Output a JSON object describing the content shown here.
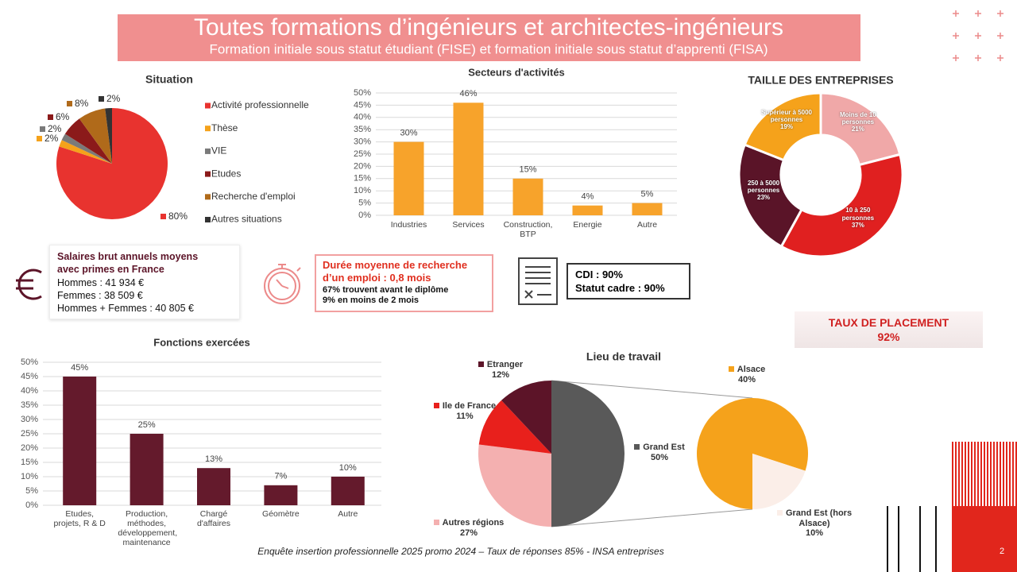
{
  "header": {
    "title": "Toutes formations d’ingénieurs et architectes-ingénieurs",
    "subtitle": "Formation initiale sous statut étudiant (FISE) et formation initiale sous statut d’apprenti (FISA)"
  },
  "chart_data": [
    {
      "type": "pie",
      "title": "Situation",
      "categories": [
        "Activité professionnelle",
        "Thèse",
        "VIE",
        "Etudes",
        "Recherche d'emploi",
        "Autres situations"
      ],
      "values": [
        80,
        2,
        2,
        6,
        8,
        2
      ],
      "value_labels": [
        "80%",
        "2%",
        "2%",
        "6%",
        "8%",
        "2%"
      ],
      "colors": [
        "#e8332f",
        "#f5a21b",
        "#7a7a7a",
        "#8b1a1a",
        "#b06a1a",
        "#333333"
      ],
      "legend": "right"
    },
    {
      "type": "bar",
      "title": "Secteurs d'activités",
      "categories": [
        "Industries",
        "Services",
        "Construction, BTP",
        "Energie",
        "Autre"
      ],
      "values": [
        30,
        46,
        15,
        4,
        5
      ],
      "value_labels": [
        "30%",
        "46%",
        "15%",
        "4%",
        "5%"
      ],
      "color": "#f7a32b",
      "ylim": [
        0,
        50
      ],
      "yticks": [
        {
          "value": 0,
          "label": "0%"
        },
        {
          "value": 5,
          "label": "5%"
        },
        {
          "value": 10,
          "label": "10%"
        },
        {
          "value": 15,
          "label": "15%"
        },
        {
          "value": 20,
          "label": "20%"
        },
        {
          "value": 25,
          "label": "25%"
        },
        {
          "value": 30,
          "label": "30%"
        },
        {
          "value": 35,
          "label": "35%"
        },
        {
          "value": 40,
          "label": "40%"
        },
        {
          "value": 45,
          "label": "45%"
        },
        {
          "value": 50,
          "label": "50%"
        }
      ],
      "grid": true
    },
    {
      "type": "donut",
      "title": "TAILLE DES ENTREPRISES",
      "categories": [
        "Moins de 10 personnes",
        "10 à 250 personnes",
        "250 à 5000 personnes",
        "Supérieur à 5000 personnes"
      ],
      "values": [
        21,
        37,
        23,
        19
      ],
      "value_labels": [
        "21%",
        "37%",
        "23%",
        "19%"
      ],
      "colors": [
        "#f0a8a8",
        "#e02020",
        "#5a1428",
        "#f5a21b"
      ]
    },
    {
      "type": "bar",
      "title": "Fonctions exercées",
      "categories": [
        "Etudes, projets, R & D",
        "Production, méthodes, développement, maintenance",
        "Chargé d'affaires",
        "Géomètre",
        "Autre"
      ],
      "values": [
        45,
        25,
        13,
        7,
        10
      ],
      "value_labels": [
        "45%",
        "25%",
        "13%",
        "7%",
        "10%"
      ],
      "color": "#641a2c",
      "ylim": [
        0,
        50
      ],
      "yticks": [
        {
          "value": 0,
          "label": "0%"
        },
        {
          "value": 5,
          "label": "5%"
        },
        {
          "value": 10,
          "label": "10%"
        },
        {
          "value": 15,
          "label": "15%"
        },
        {
          "value": 20,
          "label": "20%"
        },
        {
          "value": 25,
          "label": "25%"
        },
        {
          "value": 30,
          "label": "30%"
        },
        {
          "value": 35,
          "label": "35%"
        },
        {
          "value": 40,
          "label": "40%"
        },
        {
          "value": 45,
          "label": "45%"
        },
        {
          "value": 50,
          "label": "50%"
        }
      ],
      "grid": true
    },
    {
      "type": "pie_of_pie",
      "title": "Lieu de travail",
      "categories": [
        "Grand Est",
        "Autres régions",
        "Ile de France",
        "Etranger"
      ],
      "values": [
        50,
        27,
        11,
        12
      ],
      "value_labels": [
        "50%",
        "27%",
        "11%",
        "12%"
      ],
      "colors": [
        "#595959",
        "#f4b0b0",
        "#e8201c",
        "#5c1428"
      ],
      "detail": {
        "categories": [
          "Alsace",
          "Grand Est (hors Alsace)"
        ],
        "values": [
          40,
          10
        ],
        "value_labels": [
          "40%",
          "10%"
        ],
        "colors": [
          "#f5a21b",
          "#fbeee8"
        ]
      }
    }
  ],
  "salary": {
    "title": "Salaires brut annuels moyens avec primes en France",
    "lines": [
      "Hommes : 41 934 €",
      "Femmes : 38 509 €",
      "Hommes + Femmes : 40 805 €"
    ]
  },
  "search": {
    "title": "Durée moyenne de recherche d’un emploi : 0,8 mois",
    "lines": [
      "67% trouvent avant le diplôme",
      "9% en moins de 2 mois"
    ]
  },
  "contract": {
    "lines": [
      "CDI : 90%",
      "Statut cadre : 90%"
    ]
  },
  "placement": {
    "title": "TAUX DE PLACEMENT",
    "value": "92%"
  },
  "footer": "Enquête insertion professionnelle 2025 promo 2024 – Taux de réponses 85% - INSA entreprises",
  "page_number": "2"
}
